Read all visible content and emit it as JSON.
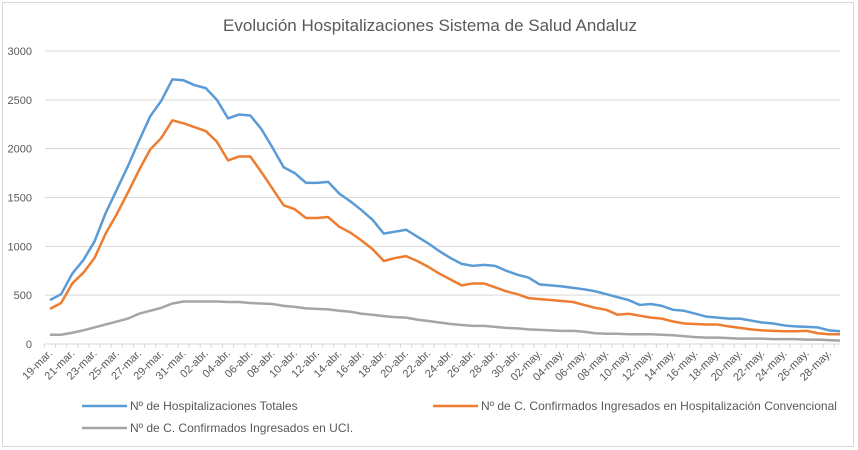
{
  "chart_data": {
    "type": "line",
    "title": "Evolución Hospitalizaciones Sistema de Salud Andaluz",
    "xlabel": "",
    "ylabel": "",
    "ylim": [
      0,
      3000
    ],
    "yticks": [
      "0",
      "500",
      "1000",
      "1500",
      "2000",
      "2500",
      "3000"
    ],
    "ytick_values": [
      0,
      500,
      1000,
      1500,
      2000,
      2500,
      3000
    ],
    "grid": true,
    "legend_placement": "bottom",
    "x_tick_labels": [
      "19-mar.",
      "21-mar.",
      "23-mar.",
      "25-mar.",
      "27-mar.",
      "29-mar.",
      "31-mar.",
      "02-abr.",
      "04-abr.",
      "06-abr.",
      "08-abr.",
      "10-abr.",
      "12-abr.",
      "14-abr.",
      "16-abr.",
      "18-abr.",
      "20-abr.",
      "22-abr.",
      "24-abr.",
      "26-abr.",
      "28-abr.",
      "30-abr.",
      "02-may.",
      "04-may.",
      "06-may.",
      "08-may.",
      "10-may.",
      "12-may.",
      "14-may.",
      "16-may.",
      "18-may.",
      "20-may.",
      "22-may.",
      "24-may.",
      "26-may.",
      "28-may."
    ],
    "x_start": "19-mar.",
    "x_end": "29-may.",
    "series": [
      {
        "name": "Nº de Hospitalizaciones Totales",
        "color": "#5b9bd5",
        "values": [
          450,
          510,
          720,
          860,
          1050,
          1340,
          1580,
          1820,
          2080,
          2330,
          2490,
          2710,
          2700,
          2650,
          2620,
          2500,
          2310,
          2350,
          2340,
          2200,
          2010,
          1810,
          1750,
          1650,
          1650,
          1660,
          1540,
          1460,
          1370,
          1270,
          1130,
          1150,
          1170,
          1100,
          1030,
          950,
          880,
          820,
          800,
          810,
          800,
          750,
          710,
          680,
          610,
          600,
          590,
          575,
          560,
          540,
          510,
          480,
          450,
          400,
          410,
          390,
          350,
          340,
          310,
          280,
          270,
          260,
          260,
          240,
          220,
          210,
          190,
          180,
          175,
          170,
          140,
          130
        ]
      },
      {
        "name": "Nº de C. Confirmados Ingresados en Hospitalización Convencional",
        "color": "#ed7d31",
        "values": [
          360,
          420,
          620,
          730,
          880,
          1130,
          1330,
          1550,
          1780,
          1990,
          2110,
          2290,
          2260,
          2220,
          2180,
          2070,
          1880,
          1920,
          1920,
          1760,
          1590,
          1420,
          1380,
          1290,
          1290,
          1300,
          1200,
          1140,
          1060,
          970,
          850,
          880,
          900,
          850,
          790,
          720,
          660,
          600,
          620,
          620,
          580,
          540,
          510,
          470,
          460,
          450,
          440,
          430,
          400,
          370,
          350,
          300,
          310,
          290,
          270,
          260,
          230,
          210,
          205,
          200,
          200,
          180,
          165,
          150,
          140,
          135,
          130,
          130,
          135,
          110,
          100,
          100
        ]
      },
      {
        "name": "Nº de C. Confirmados Ingresados en UCI.",
        "color": "#a5a5a5",
        "values": [
          95,
          95,
          115,
          140,
          170,
          200,
          230,
          260,
          310,
          340,
          370,
          415,
          435,
          435,
          435,
          435,
          430,
          430,
          420,
          415,
          410,
          390,
          380,
          365,
          360,
          355,
          340,
          330,
          310,
          300,
          285,
          275,
          270,
          250,
          235,
          220,
          205,
          195,
          185,
          185,
          175,
          165,
          160,
          150,
          145,
          140,
          135,
          135,
          125,
          110,
          105,
          105,
          100,
          100,
          100,
          95,
          90,
          80,
          70,
          65,
          65,
          60,
          55,
          55,
          55,
          50,
          50,
          50,
          45,
          45,
          40,
          35
        ]
      }
    ]
  }
}
